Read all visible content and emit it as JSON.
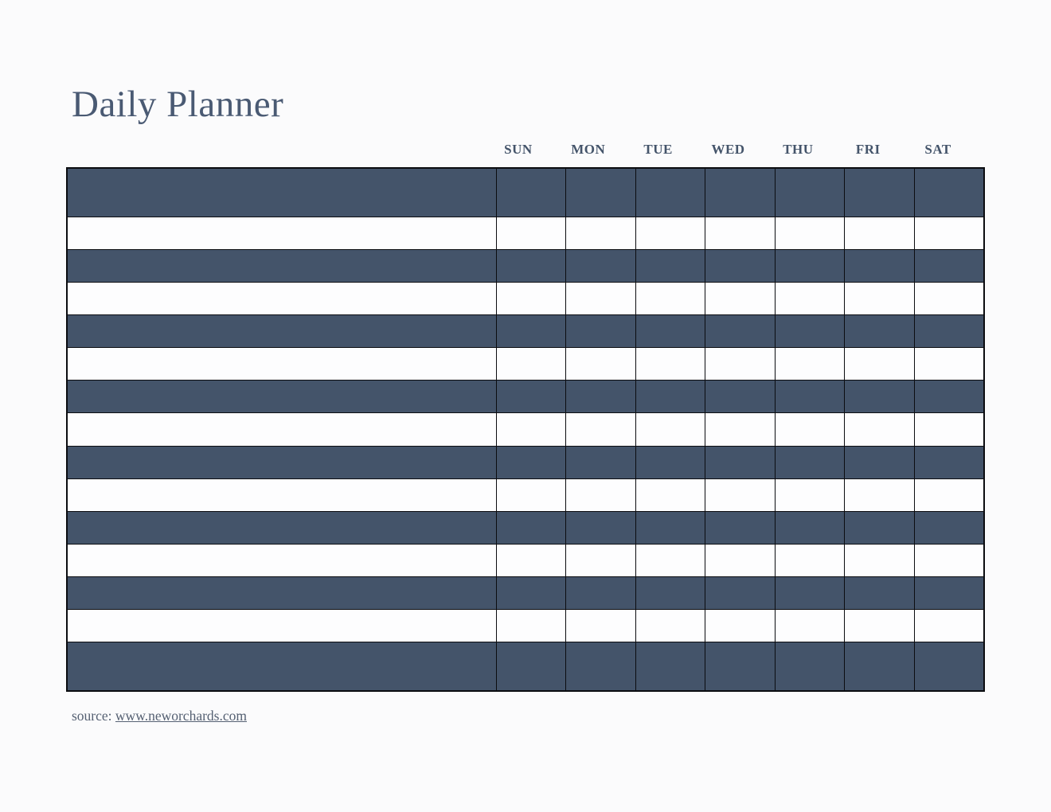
{
  "document": {
    "title": "Daily Planner",
    "source": {
      "label": "source: ",
      "link_text": "www.neworchards.com"
    }
  },
  "planner": {
    "day_headers": [
      "SUN",
      "MON",
      "TUE",
      "WED",
      "THU",
      "FRI",
      "SAT"
    ],
    "num_rows": 15,
    "first_row_style": "dark",
    "cells_empty": true
  },
  "colors": {
    "bg": "#FBFBFC",
    "title": "#4A5A73",
    "header": "#44546A",
    "dark": "#44546A",
    "light": "#FDFDFE",
    "border": "#0B0C10",
    "src": "#566173"
  }
}
